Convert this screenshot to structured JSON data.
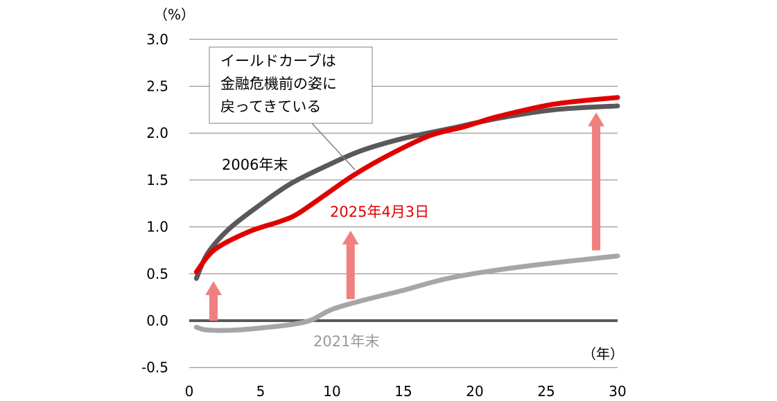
{
  "chart_data": {
    "type": "line",
    "title": "",
    "ylabel": "（%）",
    "xlabel": "（年）",
    "xlim": [
      0,
      30
    ],
    "ylim": [
      -0.5,
      3.0
    ],
    "xticks": [
      "0",
      "5",
      "10",
      "15",
      "20",
      "25",
      "30"
    ],
    "xtick_values": [
      0,
      5,
      10,
      15,
      20,
      25,
      30
    ],
    "yticks": [
      "3.0",
      "2.5",
      "2.0",
      "1.5",
      "1.0",
      "0.5",
      "0.0",
      "-0.5"
    ],
    "ytick_values": [
      3.0,
      2.5,
      2.0,
      1.5,
      1.0,
      0.5,
      0.0,
      -0.5
    ],
    "grid": true,
    "series": [
      {
        "name": "2006年末",
        "color": "#595959",
        "x": [
          0.5,
          1.3,
          2.8,
          5,
          7.1,
          9.6,
          12,
          14.9,
          18.3,
          21.7,
          25.6,
          30
        ],
        "y": [
          0.45,
          0.72,
          0.98,
          1.24,
          1.46,
          1.65,
          1.81,
          1.94,
          2.05,
          2.16,
          2.25,
          2.29
        ]
      },
      {
        "name": "2025年4月3日",
        "color": "#e00000",
        "x": [
          0.5,
          1.8,
          4.2,
          6.4,
          7.6,
          9.6,
          11.5,
          13.9,
          16.8,
          19.3,
          21.7,
          25.6,
          30
        ],
        "y": [
          0.52,
          0.76,
          0.95,
          1.06,
          1.14,
          1.35,
          1.55,
          1.76,
          1.97,
          2.07,
          2.18,
          2.31,
          2.38
        ]
      },
      {
        "name": "2021年末",
        "color": "#a6a6a6",
        "x": [
          0.5,
          1.3,
          3.3,
          6.2,
          7.6,
          8.6,
          10,
          12,
          14.9,
          17.8,
          20.7,
          24.6,
          30
        ],
        "y": [
          -0.07,
          -0.1,
          -0.1,
          -0.06,
          -0.03,
          0.01,
          0.12,
          0.21,
          0.32,
          0.44,
          0.52,
          0.6,
          0.69
        ]
      }
    ],
    "arrows": [
      {
        "x": 1.7,
        "from": 0.0,
        "to": 0.42
      },
      {
        "x": 11.3,
        "from": 0.23,
        "to": 0.96
      },
      {
        "x": 28.5,
        "from": 0.75,
        "to": 2.22
      }
    ],
    "arrow_color": "#f08080",
    "annotation": {
      "lines": [
        "イールドカーブは",
        "金融危機前の姿に",
        "戻ってきている"
      ]
    }
  }
}
